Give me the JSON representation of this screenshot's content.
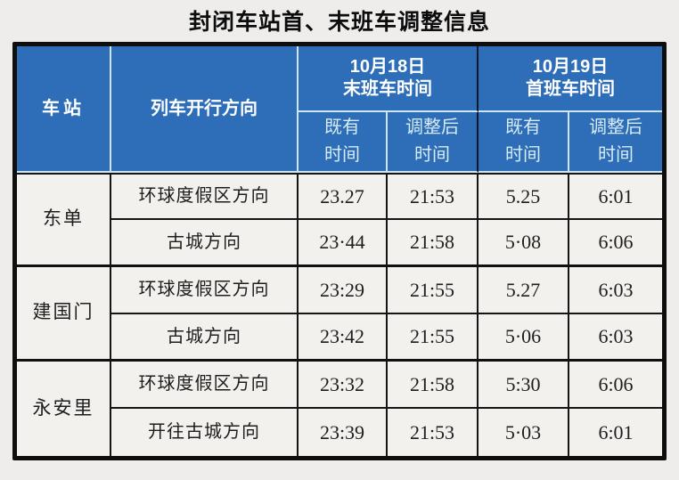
{
  "title": "封闭车站首、末班车调整信息",
  "colors": {
    "header_blue": "#2e6db7",
    "header_text": "#ffffff",
    "subheader_text": "#d7ecf4",
    "body_bg": "#f2f1ee",
    "page_bg": "#eeedeb",
    "border_black": "#0e0e0e",
    "header_divider_light": "#cfe6f2",
    "header_divider_dark": "#101826"
  },
  "header": {
    "station": "车站",
    "direction": "列车开行方向",
    "group_oct18": {
      "line1": "10月18日",
      "line2": "末班车时间"
    },
    "group_oct19": {
      "line1": "10月19日",
      "line2": "首班车时间"
    },
    "sub_existing": {
      "line1": "既有",
      "line2": "时间"
    },
    "sub_adjusted": {
      "line1": "调整后",
      "line2": "时间"
    }
  },
  "table": {
    "groups": [
      {
        "station": "东单",
        "rows": [
          {
            "direction": "环球度假区方向",
            "last_existing": "23.27",
            "last_adjusted": "21:53",
            "first_existing": "5.25",
            "first_adjusted": "6:01"
          },
          {
            "direction": "古城方向",
            "last_existing": "23·44",
            "last_adjusted": "21:58",
            "first_existing": "5·08",
            "first_adjusted": "6:06"
          }
        ]
      },
      {
        "station": "建国门",
        "rows": [
          {
            "direction": "环球度假区方向",
            "last_existing": "23:29",
            "last_adjusted": "21:55",
            "first_existing": "5.27",
            "first_adjusted": "6:03"
          },
          {
            "direction": "古城方向",
            "last_existing": "23:42",
            "last_adjusted": "21:55",
            "first_existing": "5·06",
            "first_adjusted": "6:03"
          }
        ]
      },
      {
        "station": "永安里",
        "rows": [
          {
            "direction": "环球度假区方向",
            "last_existing": "23:32",
            "last_adjusted": "21:58",
            "first_existing": "5:30",
            "first_adjusted": "6:06"
          },
          {
            "direction": "开往古城方向",
            "last_existing": "23:39",
            "last_adjusted": "21:53",
            "first_existing": "5·03",
            "first_adjusted": "6:01"
          }
        ]
      }
    ]
  },
  "chart_data": {
    "type": "table",
    "title": "封闭车站首、末班车调整信息",
    "columns": [
      "车站",
      "列车开行方向",
      "10月18日末班车时间-既有时间",
      "10月18日末班车时间-调整后时间",
      "10月19日首班车时间-既有时间",
      "10月19日首班车时间-调整后时间"
    ],
    "rows": [
      [
        "东单",
        "环球度假区方向",
        "23.27",
        "21:53",
        "5.25",
        "6:01"
      ],
      [
        "东单",
        "古城方向",
        "23·44",
        "21:58",
        "5·08",
        "6:06"
      ],
      [
        "建国门",
        "环球度假区方向",
        "23:29",
        "21:55",
        "5.27",
        "6:03"
      ],
      [
        "建国门",
        "古城方向",
        "23:42",
        "21:55",
        "5·06",
        "6:03"
      ],
      [
        "永安里",
        "环球度假区方向",
        "23:32",
        "21:58",
        "5:30",
        "6:06"
      ],
      [
        "永安里",
        "开往古城方向",
        "23:39",
        "21:53",
        "5·03",
        "6:01"
      ]
    ]
  }
}
